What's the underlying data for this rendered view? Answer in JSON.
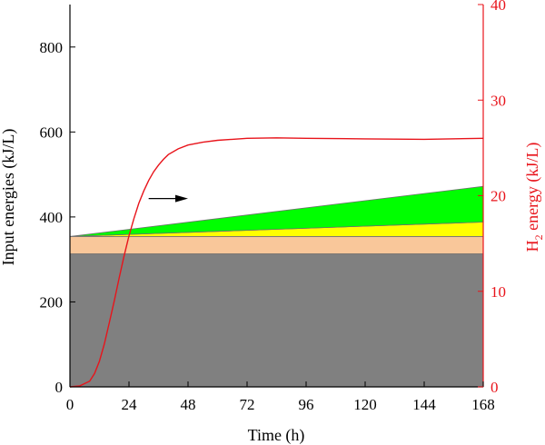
{
  "chart_data": {
    "type": "area",
    "xlabel": "Time (h)",
    "ylabel": "Input energies (kJ/L)",
    "y2label": {
      "prefix": "H",
      "subscript": "2",
      "suffix": " energy (kJ/L)"
    },
    "xlim": [
      0,
      168
    ],
    "ylim": [
      0,
      900
    ],
    "y2lim": [
      0,
      40
    ],
    "x_ticks": [
      0,
      24,
      48,
      72,
      96,
      120,
      144,
      168
    ],
    "y_ticks": [
      0,
      200,
      400,
      600,
      800
    ],
    "y2_ticks": [
      0,
      10,
      20,
      30,
      40
    ],
    "grid": false,
    "legend": "none",
    "stacked_bands": [
      {
        "color": "#808080",
        "x": [
          0,
          168
        ],
        "lower": [
          0,
          0
        ],
        "upper": [
          313,
          313
        ]
      },
      {
        "color": "#f9c79a",
        "x": [
          0,
          168
        ],
        "lower": [
          313,
          313
        ],
        "upper": [
          354,
          354
        ]
      },
      {
        "color": "#ffff00",
        "x": [
          0,
          168
        ],
        "lower": [
          354,
          354
        ],
        "upper": [
          354,
          388
        ]
      },
      {
        "color": "#00ff00",
        "x": [
          0,
          168
        ],
        "lower": [
          354,
          388
        ],
        "upper": [
          354,
          472
        ]
      }
    ],
    "h2_series": {
      "axis": "right",
      "color": "#e8141b",
      "x": [
        0,
        4,
        8,
        10,
        12,
        14,
        16,
        18,
        20,
        22,
        24,
        26,
        28,
        30,
        32,
        34,
        36,
        38,
        40,
        44,
        48,
        54,
        60,
        66,
        72,
        84,
        96,
        120,
        144,
        168
      ],
      "y": [
        0,
        0.1,
        0.6,
        1.4,
        2.7,
        4.5,
        6.7,
        9.0,
        11.4,
        13.7,
        15.8,
        17.6,
        19.2,
        20.5,
        21.6,
        22.5,
        23.2,
        23.8,
        24.3,
        24.9,
        25.3,
        25.6,
        25.8,
        25.9,
        26.0,
        26.05,
        26.0,
        25.95,
        25.9,
        26.0
      ]
    },
    "arrow": {
      "from": [
        32,
        19.7
      ],
      "to": [
        48,
        19.7
      ],
      "axis": "right",
      "color": "#000000"
    },
    "colors": {
      "axis_left": "#000000",
      "axis_right": "#e8141b"
    }
  }
}
